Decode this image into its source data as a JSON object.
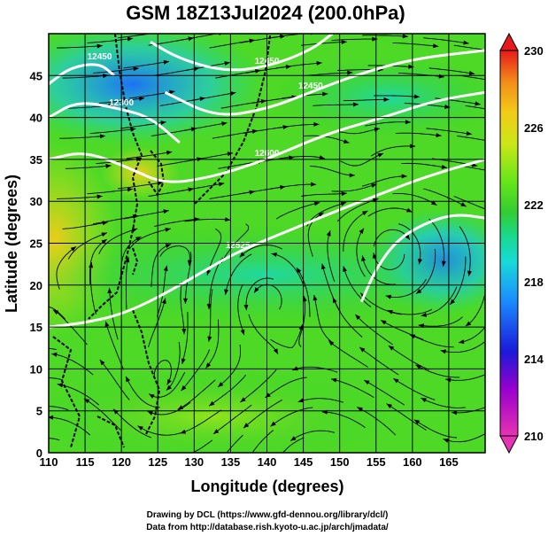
{
  "chart_data": {
    "type": "heatmap",
    "title": "GSM 18Z13Jul2024 (200.0hPa)",
    "xlabel": "Longitude (degrees)",
    "ylabel": "Latitude  (degrees)",
    "xlim": [
      110,
      170
    ],
    "ylim": [
      0,
      50
    ],
    "x_ticks": [
      "110",
      "115",
      "120",
      "125",
      "130",
      "135",
      "140",
      "145",
      "150",
      "155",
      "160",
      "165"
    ],
    "y_ticks": [
      "0",
      "5",
      "10",
      "15",
      "20",
      "25",
      "30",
      "35",
      "40",
      "45"
    ],
    "grid": true,
    "colorbar": {
      "range": [
        210,
        230
      ],
      "ticks": [
        "210",
        "214",
        "218",
        "222",
        "226",
        "230"
      ],
      "colors": [
        "#e633b3",
        "#9900cc",
        "#1a1ad9",
        "#1a8cff",
        "#19d9d9",
        "#19d98c",
        "#33cc33",
        "#66e619",
        "#cce619",
        "#f2cc19",
        "#f28c19",
        "#e61a1a"
      ]
    },
    "contours": [
      {
        "label": "12300",
        "points": [
          [
            110,
            40
          ],
          [
            114,
            42
          ],
          [
            120,
            41
          ],
          [
            124,
            40
          ],
          [
            128,
            37
          ]
        ]
      },
      {
        "label": "12450",
        "points": [
          [
            126,
            43
          ],
          [
            133,
            40
          ],
          [
            140,
            41
          ],
          [
            146,
            43
          ],
          [
            152,
            45
          ],
          [
            160,
            47
          ],
          [
            170,
            48
          ]
        ]
      },
      {
        "label": "12450",
        "points": [
          [
            110,
            44
          ],
          [
            113,
            46
          ],
          [
            117,
            46.5
          ],
          [
            119,
            45
          ]
        ]
      },
      {
        "label": "12600",
        "points": [
          [
            110,
            35
          ],
          [
            115,
            36
          ],
          [
            121,
            34
          ],
          [
            126,
            32
          ],
          [
            133,
            33
          ],
          [
            140,
            35
          ],
          [
            148,
            38
          ],
          [
            156,
            40
          ],
          [
            163,
            42
          ],
          [
            170,
            43
          ]
        ]
      },
      {
        "label": "12450",
        "points": [
          [
            124,
            49
          ],
          [
            128,
            47
          ],
          [
            134,
            45.5
          ],
          [
            140,
            46
          ],
          [
            146,
            48
          ],
          [
            149,
            50
          ]
        ]
      },
      {
        "label": "12525",
        "points": [
          [
            110,
            15
          ],
          [
            115,
            15.5
          ],
          [
            120,
            16.5
          ],
          [
            125,
            18.5
          ],
          [
            131,
            21.5
          ],
          [
            136,
            24
          ],
          [
            143,
            26.5
          ],
          [
            150,
            29
          ],
          [
            156,
            31
          ],
          [
            162,
            33
          ],
          [
            170,
            35
          ]
        ]
      },
      {
        "label": "",
        "points": [
          [
            153,
            18
          ],
          [
            155,
            22
          ],
          [
            158,
            25.5
          ],
          [
            162,
            27.5
          ],
          [
            166,
            28.5
          ],
          [
            170,
            28
          ]
        ]
      }
    ],
    "credits": [
      "Drawing by DCL (https://www.gfd-dennou.org/library/dcl/)",
      "Data from http://database.rish.kyoto-u.ac.jp/arch/jmadata/"
    ]
  }
}
